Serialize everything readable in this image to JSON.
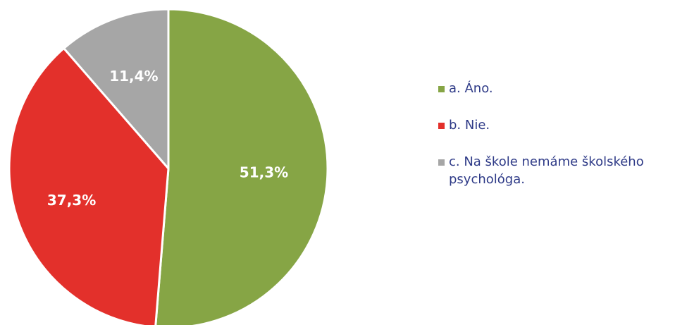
{
  "chart_data": {
    "type": "pie",
    "title": "",
    "categories": [
      "a. Áno.",
      "b. Nie.",
      "c. Na škole nemáme školského psychológa."
    ],
    "values": [
      51.3,
      37.3,
      11.4
    ],
    "value_labels": [
      "51,3%",
      "37,3%",
      "11,4%"
    ],
    "colors": [
      "#86a545",
      "#e3302b",
      "#a6a6a6"
    ],
    "start": "12 o'clock",
    "direction": "clockwise",
    "legend_position": "right"
  },
  "legend": {
    "items": [
      {
        "label": "a. Áno.",
        "color": "#86a545"
      },
      {
        "label": "b. Nie.",
        "color": "#e3302b"
      },
      {
        "label": "c. Na škole nemáme školského psychológa.",
        "color": "#a6a6a6"
      }
    ]
  }
}
